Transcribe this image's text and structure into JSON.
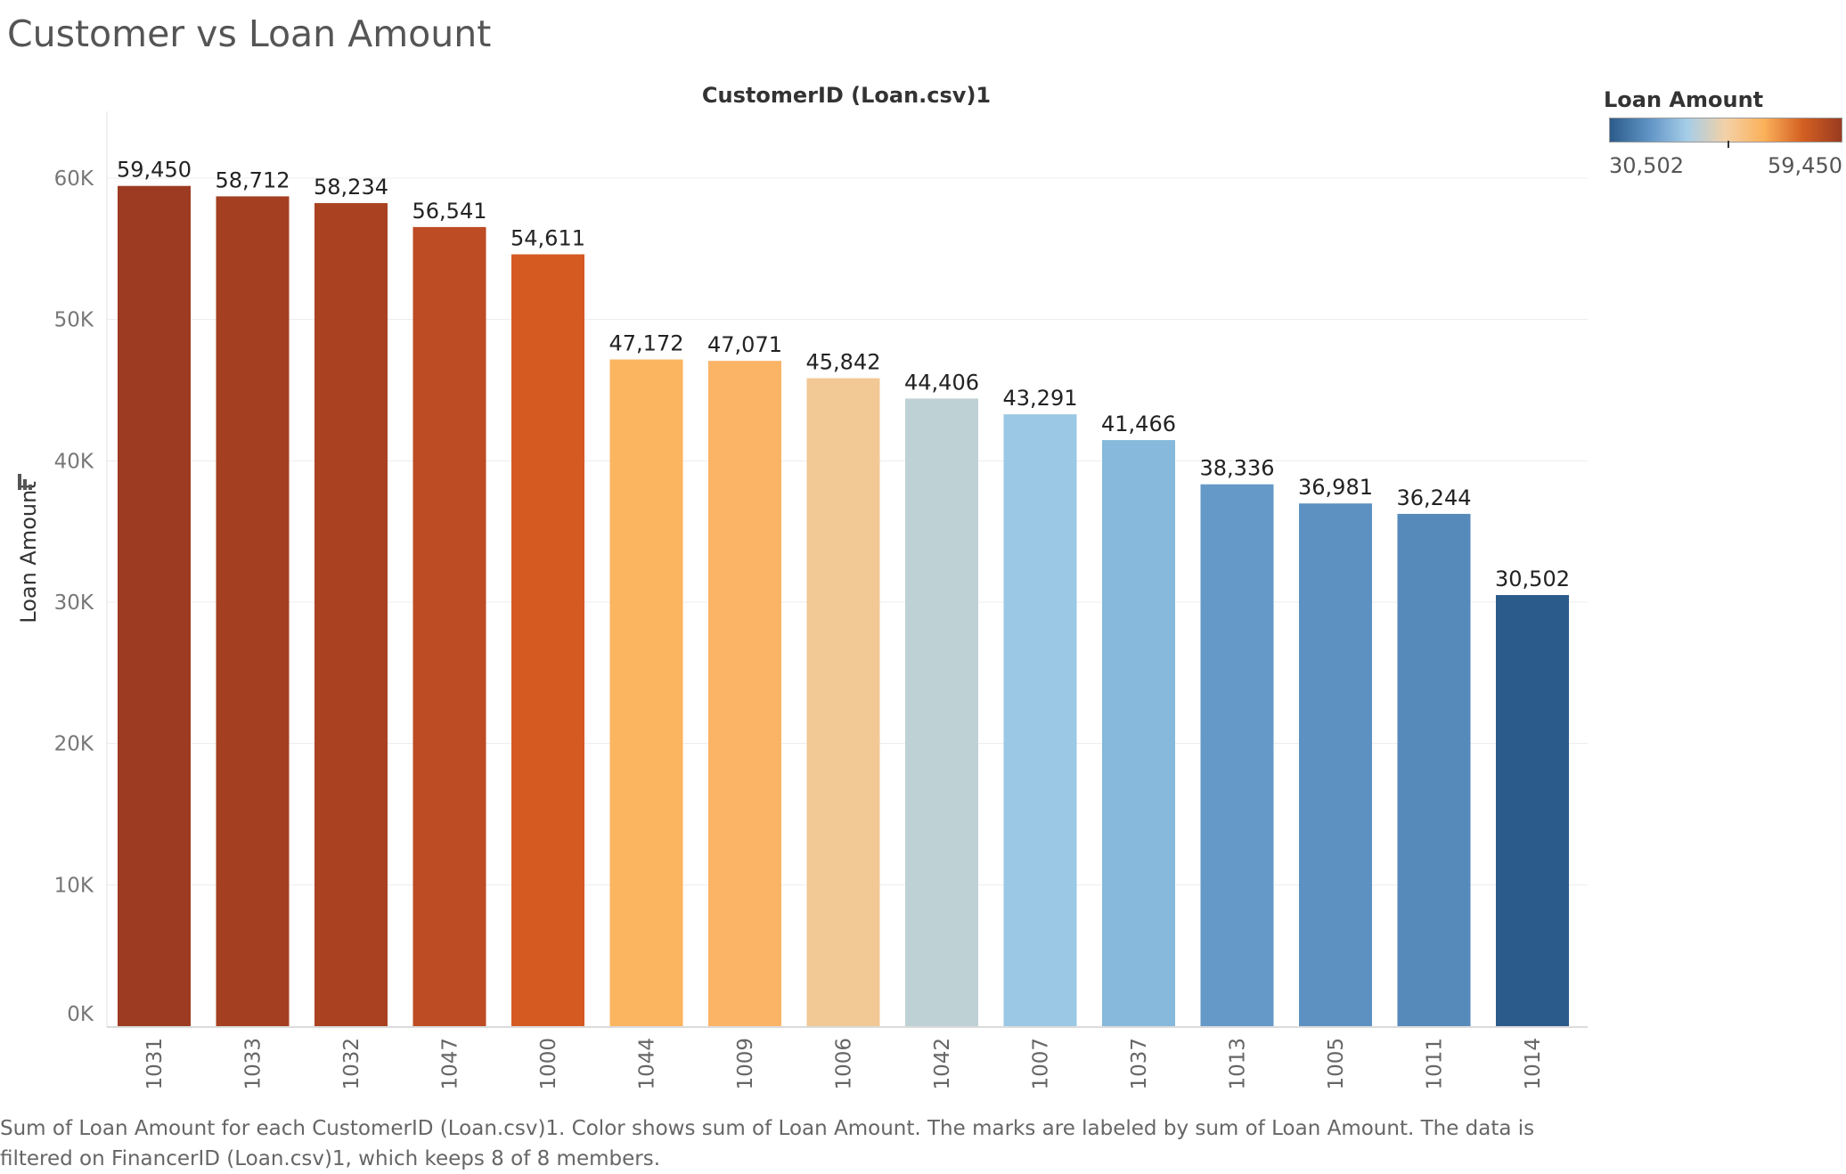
{
  "title": "Customer vs Loan Amount",
  "caption": "Sum of Loan Amount for each CustomerID (Loan.csv)1.  Color shows sum of Loan Amount.  The marks are labeled by sum of Loan Amount. The data is filtered on FinancerID (Loan.csv)1, which keeps 8 of 8 members.",
  "legend": {
    "title": "Loan Amount",
    "min_label": "30,502",
    "max_label": "59,450",
    "colors": [
      "#2b5b8a",
      "#5f93c4",
      "#a5cde8",
      "#f3d1a6",
      "#fbb05a",
      "#d35f22",
      "#9a3b20"
    ]
  },
  "chart_data": {
    "type": "bar",
    "title": "CustomerID (Loan.csv)1",
    "xlabel": "",
    "ylabel": "Loan Amount",
    "ylim": [
      0,
      60000
    ],
    "ytick_values": [
      0,
      10000,
      20000,
      30000,
      40000,
      50000,
      60000
    ],
    "ytick_labels": [
      "0K",
      "10K",
      "20K",
      "30K",
      "40K",
      "50K",
      "60K"
    ],
    "grid": true,
    "categories": [
      "1031",
      "1033",
      "1032",
      "1047",
      "1000",
      "1044",
      "1009",
      "1006",
      "1042",
      "1007",
      "1037",
      "1013",
      "1005",
      "1011",
      "1014"
    ],
    "values": [
      59450,
      58712,
      58234,
      56541,
      54611,
      47172,
      47071,
      45842,
      44406,
      43291,
      41466,
      38336,
      36981,
      36244,
      30502
    ],
    "value_labels": [
      "59,450",
      "58,712",
      "58,234",
      "56,541",
      "54,611",
      "47,172",
      "47,071",
      "45,842",
      "44,406",
      "43,291",
      "41,466",
      "38,336",
      "36,981",
      "36,244",
      "30,502"
    ],
    "colors": [
      "#9c3b21",
      "#a53f21",
      "#aa4222",
      "#bd4b23",
      "#d45a22",
      "#fbb45f",
      "#fbb466",
      "#f2c895",
      "#bed1d4",
      "#9bc8e4",
      "#86b9db",
      "#6599c8",
      "#5d91c1",
      "#568abb",
      "#2b5b8a"
    ]
  }
}
